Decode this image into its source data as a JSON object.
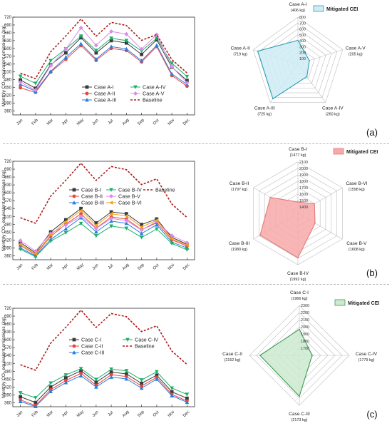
{
  "months": [
    "Jan",
    "Feb",
    "Mar",
    "Apr",
    "May",
    "Jun",
    "Jul",
    "Aug",
    "Sep",
    "Oct",
    "Nov",
    "Dec"
  ],
  "line_colors": {
    "s1": "#3a3a3a",
    "s2": "#e8453c",
    "s3": "#2a7de1",
    "s4": "#19b068",
    "s5": "#d98ce8",
    "s6": "#f2a019",
    "baseline": "#b01c1c"
  },
  "chart_data": [
    {
      "type": "line",
      "panel": "a",
      "ylabel": "Monthly CO₂ equivalent emissions (kg)",
      "ylim": [
        345,
        720
      ],
      "yticks": [
        360,
        390,
        420,
        450,
        480,
        510,
        540,
        570,
        600,
        630,
        660,
        690,
        720
      ],
      "categories": [
        "Jan",
        "Feb",
        "Mar",
        "Apr",
        "May",
        "Jun",
        "Jul",
        "Aug",
        "Sep",
        "Oct",
        "Nov",
        "Dec"
      ],
      "series": [
        {
          "name": "Case A-I",
          "values": [
            479,
            447,
            537,
            583,
            641,
            583,
            630,
            621,
            577,
            633,
            528,
            477
          ]
        },
        {
          "name": "Case A-II",
          "values": [
            449,
            431,
            509,
            558,
            611,
            554,
            600,
            592,
            548,
            607,
            496,
            455
          ]
        },
        {
          "name": "Case A-III",
          "values": [
            462,
            436,
            512,
            566,
            618,
            559,
            607,
            598,
            553,
            612,
            502,
            462
          ]
        },
        {
          "name": "Case A-IV",
          "values": [
            493,
            466,
            553,
            598,
            647,
            592,
            639,
            630,
            590,
            639,
            543,
            492
          ]
        },
        {
          "name": "Case A-V",
          "values": [
            470,
            440,
            534,
            597,
            679,
            612,
            665,
            655,
            597,
            653,
            530,
            468
          ]
        },
        {
          "name": "Baseline",
          "values": [
            505,
            484,
            587,
            648,
            713,
            647,
            700,
            688,
            631,
            653,
            557,
            506
          ]
        }
      ],
      "legend": [
        "Case A-I",
        "Case A-II",
        "Case A-III",
        "Case A-IV",
        "Case A-V",
        "Baseline"
      ]
    },
    {
      "type": "line",
      "panel": "b",
      "ylabel": "Monthly CO₂ equivalent emissions (kg)",
      "ylim": [
        345,
        720
      ],
      "yticks": [
        360,
        390,
        420,
        450,
        480,
        510,
        540,
        570,
        600,
        630,
        660,
        690,
        720
      ],
      "categories": [
        "Jan",
        "Feb",
        "Mar",
        "Apr",
        "May",
        "Jun",
        "Jul",
        "Aug",
        "Sep",
        "Oct",
        "Nov",
        "Dec"
      ],
      "series": [
        {
          "name": "Case B-I",
          "values": [
            410,
            372,
            451,
            497,
            540,
            485,
            527,
            520,
            479,
            500,
            430,
            404
          ]
        },
        {
          "name": "Case B-II",
          "values": [
            399,
            365,
            434,
            480,
            520,
            465,
            508,
            500,
            459,
            486,
            421,
            397
          ]
        },
        {
          "name": "Case B-III",
          "values": [
            390,
            360,
            422,
            463,
            505,
            451,
            492,
            484,
            445,
            478,
            412,
            390
          ]
        },
        {
          "name": "Case B-IV",
          "values": [
            385,
            357,
            416,
            448,
            483,
            436,
            473,
            465,
            430,
            462,
            407,
            383
          ]
        },
        {
          "name": "Case B-V",
          "values": [
            418,
            378,
            445,
            477,
            510,
            464,
            502,
            494,
            458,
            491,
            437,
            410
          ]
        },
        {
          "name": "Case B-VI",
          "values": [
            404,
            368,
            440,
            490,
            532,
            476,
            520,
            512,
            470,
            495,
            425,
            401
          ]
        },
        {
          "name": "Baseline",
          "values": [
            505,
            484,
            587,
            648,
            713,
            647,
            700,
            688,
            631,
            653,
            557,
            506
          ]
        }
      ],
      "legend": [
        "Case B-I",
        "Case B-II",
        "Case B-III",
        "Case B-IV",
        "Case B-V",
        "Case B-VI",
        "Baseline"
      ]
    },
    {
      "type": "line",
      "panel": "c",
      "ylabel": "Monthly CO₂ equivalent emissions (kg)",
      "ylim": [
        345,
        720
      ],
      "yticks": [
        360,
        390,
        420,
        450,
        480,
        510,
        540,
        570,
        600,
        630,
        660,
        690,
        720
      ],
      "categories": [
        "Jan",
        "Feb",
        "Mar",
        "Apr",
        "May",
        "Jun",
        "Jul",
        "Aug",
        "Sep",
        "Oct",
        "Nov",
        "Dec"
      ],
      "series": [
        {
          "name": "Case C-I",
          "values": [
            383,
            361,
            420,
            455,
            482,
            438,
            477,
            470,
            434,
            465,
            402,
            377
          ]
        },
        {
          "name": "Case C-II",
          "values": [
            371,
            350,
            410,
            445,
            472,
            427,
            467,
            460,
            424,
            457,
            392,
            367
          ]
        },
        {
          "name": "Case C-III",
          "values": [
            365,
            346,
            403,
            437,
            463,
            420,
            458,
            451,
            416,
            450,
            387,
            362
          ]
        },
        {
          "name": "Case C-IV",
          "values": [
            398,
            379,
            435,
            466,
            490,
            449,
            488,
            482,
            447,
            478,
            416,
            392
          ]
        },
        {
          "name": "Baseline",
          "values": [
            505,
            484,
            587,
            648,
            713,
            647,
            700,
            688,
            631,
            653,
            557,
            506
          ]
        }
      ],
      "legend": [
        "Case C-I",
        "Case C-II",
        "Case C-III",
        "Case C-IV",
        "Baseline"
      ]
    },
    {
      "type": "radar",
      "panel": "a",
      "legend": "Mitigated CEI",
      "fill": "#cfecf4",
      "stroke": "#2a9bb5",
      "rmin": 0,
      "rmax": 800,
      "ticks": [
        100,
        200,
        300,
        400,
        500,
        600,
        700,
        800
      ],
      "axes": [
        {
          "name": "Case A-I",
          "value_label": "(406 kg)",
          "value": 406
        },
        {
          "name": "Case A-V",
          "value_label": "(205 kg)",
          "value": 205
        },
        {
          "name": "Case A-IV",
          "value_label": "(260 kg)",
          "value": 260
        },
        {
          "name": "Case A-III",
          "value_label": "(725 kg)",
          "value": 725
        },
        {
          "name": "Case A-II",
          "value_label": "(719 kg)",
          "value": 719
        }
      ]
    },
    {
      "type": "radar",
      "panel": "b",
      "legend": "Mitigated CEI",
      "fill": "#f7a9a9",
      "stroke": "#e27a7a",
      "rmin": 1300,
      "rmax": 2100,
      "ticks": [
        1400,
        1500,
        1600,
        1700,
        1800,
        1900,
        2000,
        2100
      ],
      "axes": [
        {
          "name": "Case B-I",
          "value_label": "(1477 kg)",
          "value": 1477
        },
        {
          "name": "Case B-VI",
          "value_label": "(1598 kg)",
          "value": 1598
        },
        {
          "name": "Case B-V",
          "value_label": "(1608 kg)",
          "value": 1608
        },
        {
          "name": "Case B-IV",
          "value_label": "(1992 kg)",
          "value": 1992
        },
        {
          "name": "Case B-III",
          "value_label": "(1980 kg)",
          "value": 1980
        },
        {
          "name": "Case B-II",
          "value_label": "(1797 kg)",
          "value": 1797
        }
      ]
    },
    {
      "type": "radar",
      "panel": "c",
      "legend": "Mitigated CEI",
      "fill": "#cdeacf",
      "stroke": "#3c9a55",
      "rmin": 1600,
      "rmax": 2300,
      "ticks": [
        1700,
        1800,
        1900,
        2000,
        2100,
        2200,
        2300
      ],
      "axes": [
        {
          "name": "Case C-I",
          "value_label": "(1966 kg)",
          "value": 1966
        },
        {
          "name": "Case C-IV",
          "value_label": "(1779 kg)",
          "value": 1779
        },
        {
          "name": "Case C-III",
          "value_label": "(2173 kg)",
          "value": 2173
        },
        {
          "name": "Case C-II",
          "value_label": "(2152 kg)",
          "value": 2152
        }
      ]
    }
  ],
  "panel_labels": [
    "(a)",
    "(b)",
    "(c)"
  ]
}
